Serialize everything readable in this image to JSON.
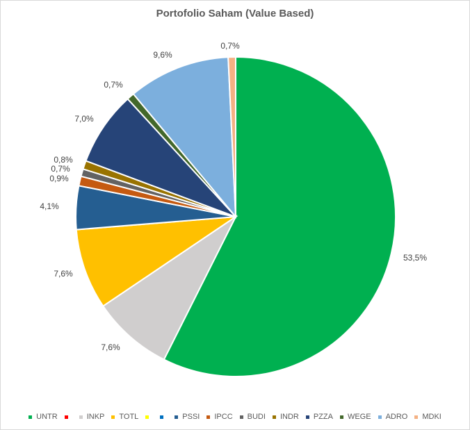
{
  "chart_data": {
    "type": "pie",
    "title": "Portofolio Saham (Value Based)",
    "legend_position": "bottom",
    "slices": [
      {
        "name": "UNTR",
        "value": 53.5,
        "label": "53,5%",
        "color": "#00b050"
      },
      {
        "name": "",
        "value": 0,
        "label": "",
        "color": "#ff0000"
      },
      {
        "name": "INKP",
        "value": 7.6,
        "label": "7,6%",
        "color": "#d0cece"
      },
      {
        "name": "TOTL",
        "value": 7.6,
        "label": "7,6%",
        "color": "#ffc000"
      },
      {
        "name": "",
        "value": 0,
        "label": "",
        "color": "#ffff00"
      },
      {
        "name": "",
        "value": 0,
        "label": "",
        "color": "#0070c0"
      },
      {
        "name": "PSSI",
        "value": 4.1,
        "label": "4,1%",
        "color": "#255e91"
      },
      {
        "name": "IPCC",
        "value": 0.9,
        "label": "0,9%",
        "color": "#c55a11"
      },
      {
        "name": "BUDI",
        "value": 0.7,
        "label": "0,7%",
        "color": "#636363"
      },
      {
        "name": "INDR",
        "value": 0.8,
        "label": "0,8%",
        "color": "#997300"
      },
      {
        "name": "PZZA",
        "value": 7.0,
        "label": "7,0%",
        "color": "#264478"
      },
      {
        "name": "WEGE",
        "value": 0.7,
        "label": "0,7%",
        "color": "#43682b"
      },
      {
        "name": "ADRO",
        "value": 9.6,
        "label": "9,6%",
        "color": "#7cafdd"
      },
      {
        "name": "MDKI",
        "value": 0.7,
        "label": "0,7%",
        "color": "#f4b183"
      }
    ]
  }
}
